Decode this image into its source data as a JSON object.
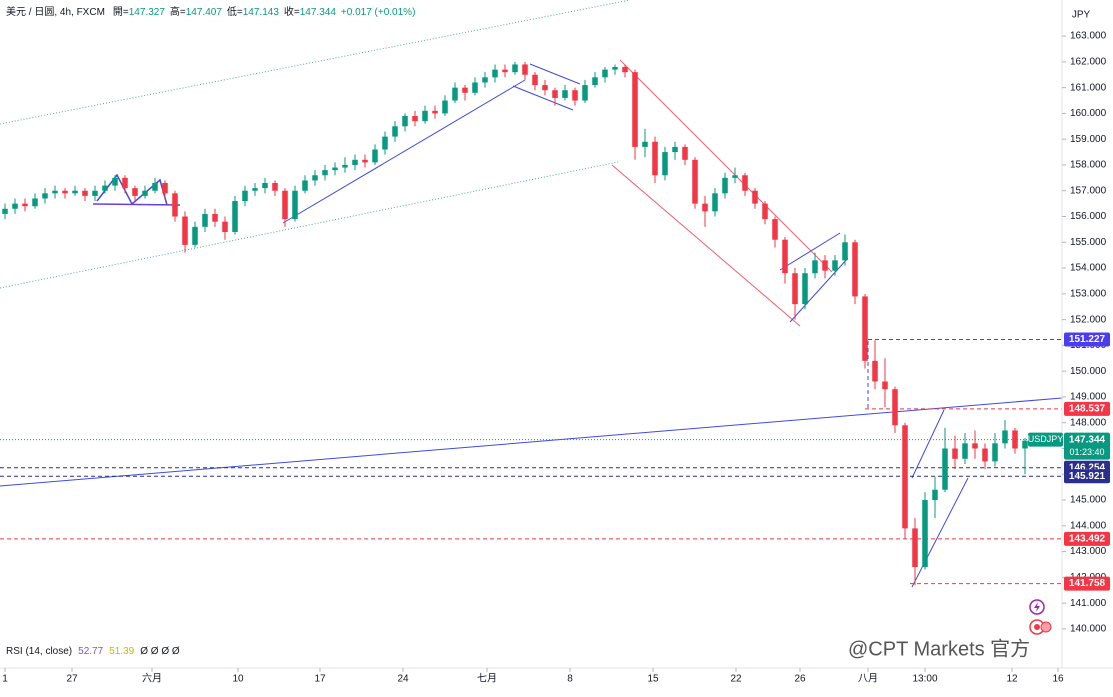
{
  "chart_data": {
    "type": "candlestick",
    "title": "美元 / 日圆, 4h, FXCM",
    "ohlc": [
      {
        "label": "開=",
        "value": 147.327
      },
      {
        "label": "高=",
        "value": 147.407
      },
      {
        "label": "低=",
        "value": 147.143
      },
      {
        "label": "收=",
        "value": 147.344
      }
    ],
    "change": "+0.017 (+0.01%)",
    "currency": "JPY",
    "up_color": "#089981",
    "down_color": "#f23645",
    "candles": [
      [
        156.1,
        156.5,
        155.9,
        156.3
      ],
      [
        156.3,
        156.7,
        156.1,
        156.5
      ],
      [
        156.5,
        156.7,
        156.2,
        156.4
      ],
      [
        156.4,
        156.9,
        156.3,
        156.7
      ],
      [
        156.7,
        157.1,
        156.5,
        156.9
      ],
      [
        156.9,
        157.2,
        156.7,
        157.0
      ],
      [
        157.0,
        157.1,
        156.7,
        156.9
      ],
      [
        156.9,
        157.2,
        156.8,
        157.0
      ],
      [
        157.0,
        157.1,
        156.6,
        156.8
      ],
      [
        156.8,
        157.2,
        156.6,
        157.0
      ],
      [
        157.0,
        157.4,
        156.9,
        157.2
      ],
      [
        157.2,
        157.6,
        157.0,
        157.5
      ],
      [
        157.5,
        157.6,
        156.9,
        157.1
      ],
      [
        157.1,
        157.2,
        156.6,
        156.8
      ],
      [
        156.8,
        157.2,
        156.7,
        157.0
      ],
      [
        157.0,
        157.5,
        156.9,
        157.3
      ],
      [
        157.3,
        157.4,
        156.7,
        156.9
      ],
      [
        156.9,
        157.0,
        155.8,
        156.0
      ],
      [
        156.0,
        156.2,
        154.6,
        154.9
      ],
      [
        154.9,
        155.8,
        154.8,
        155.6
      ],
      [
        155.6,
        156.3,
        155.4,
        156.1
      ],
      [
        156.1,
        156.3,
        155.6,
        155.8
      ],
      [
        155.8,
        156.0,
        155.1,
        155.4
      ],
      [
        155.4,
        156.8,
        155.3,
        156.6
      ],
      [
        156.6,
        157.2,
        156.4,
        157.0
      ],
      [
        157.0,
        157.3,
        156.8,
        157.1
      ],
      [
        157.1,
        157.5,
        156.9,
        157.3
      ],
      [
        157.3,
        157.4,
        156.8,
        157.0
      ],
      [
        157.0,
        157.1,
        155.6,
        155.9
      ],
      [
        155.9,
        157.2,
        155.8,
        157.0
      ],
      [
        157.0,
        157.6,
        156.9,
        157.4
      ],
      [
        157.4,
        157.8,
        157.2,
        157.6
      ],
      [
        157.6,
        158.0,
        157.4,
        157.8
      ],
      [
        157.8,
        158.1,
        157.6,
        157.9
      ],
      [
        157.9,
        158.3,
        157.7,
        158.0
      ],
      [
        158.0,
        158.4,
        157.8,
        158.2
      ],
      [
        158.2,
        158.4,
        157.9,
        158.1
      ],
      [
        158.1,
        158.8,
        158.0,
        158.6
      ],
      [
        158.6,
        159.3,
        158.4,
        159.1
      ],
      [
        159.1,
        159.7,
        158.9,
        159.5
      ],
      [
        159.5,
        160.0,
        159.3,
        159.9
      ],
      [
        159.9,
        160.1,
        159.5,
        159.7
      ],
      [
        159.7,
        160.3,
        159.6,
        160.1
      ],
      [
        160.1,
        160.3,
        159.8,
        160.0
      ],
      [
        160.0,
        160.7,
        159.9,
        160.5
      ],
      [
        160.5,
        161.2,
        160.4,
        161.0
      ],
      [
        161.0,
        161.1,
        160.5,
        160.8
      ],
      [
        160.8,
        161.4,
        160.7,
        161.2
      ],
      [
        161.2,
        161.6,
        161.0,
        161.4
      ],
      [
        161.4,
        161.9,
        161.2,
        161.7
      ],
      [
        161.7,
        161.9,
        161.4,
        161.6
      ],
      [
        161.6,
        162.0,
        161.5,
        161.9
      ],
      [
        161.9,
        162.0,
        161.3,
        161.5
      ],
      [
        161.5,
        161.6,
        160.9,
        161.1
      ],
      [
        161.1,
        161.3,
        160.7,
        160.9
      ],
      [
        160.9,
        161.0,
        160.3,
        160.6
      ],
      [
        160.6,
        161.1,
        160.5,
        160.9
      ],
      [
        160.9,
        161.0,
        160.3,
        160.5
      ],
      [
        160.5,
        161.3,
        160.4,
        161.1
      ],
      [
        161.1,
        161.6,
        161.0,
        161.4
      ],
      [
        161.4,
        161.8,
        161.2,
        161.7
      ],
      [
        161.7,
        161.9,
        161.5,
        161.8
      ],
      [
        161.8,
        161.9,
        161.4,
        161.6
      ],
      [
        161.6,
        161.7,
        158.2,
        158.7
      ],
      [
        158.7,
        159.4,
        158.3,
        158.9
      ],
      [
        158.9,
        159.1,
        157.3,
        157.6
      ],
      [
        157.6,
        158.7,
        157.4,
        158.5
      ],
      [
        158.5,
        158.9,
        158.2,
        158.7
      ],
      [
        158.7,
        158.8,
        158.0,
        158.2
      ],
      [
        158.2,
        158.3,
        156.3,
        156.5
      ],
      [
        156.5,
        156.8,
        155.6,
        156.2
      ],
      [
        156.2,
        157.1,
        156.0,
        156.9
      ],
      [
        156.9,
        157.7,
        156.7,
        157.5
      ],
      [
        157.5,
        157.9,
        157.3,
        157.6
      ],
      [
        157.6,
        157.7,
        156.8,
        157.0
      ],
      [
        157.0,
        157.1,
        156.3,
        156.5
      ],
      [
        156.5,
        156.6,
        155.7,
        155.9
      ],
      [
        155.9,
        156.0,
        154.8,
        155.1
      ],
      [
        155.1,
        155.2,
        153.4,
        153.8
      ],
      [
        153.8,
        154.0,
        152.0,
        152.6
      ],
      [
        152.6,
        154.0,
        152.4,
        153.8
      ],
      [
        153.8,
        154.6,
        153.6,
        154.3
      ],
      [
        154.3,
        154.5,
        153.6,
        153.9
      ],
      [
        153.9,
        154.5,
        153.7,
        154.3
      ],
      [
        154.3,
        155.3,
        154.1,
        155.0
      ],
      [
        155.0,
        155.1,
        152.6,
        152.9
      ],
      [
        152.9,
        153.0,
        150.1,
        150.4
      ],
      [
        150.4,
        151.2,
        149.3,
        149.6
      ],
      [
        149.6,
        150.5,
        148.6,
        149.3
      ],
      [
        149.3,
        149.4,
        147.6,
        147.9
      ],
      [
        147.9,
        148.0,
        143.5,
        143.9
      ],
      [
        143.9,
        144.3,
        141.7,
        142.4
      ],
      [
        142.4,
        145.3,
        142.3,
        145.0
      ],
      [
        145.0,
        145.9,
        144.3,
        145.4
      ],
      [
        145.4,
        147.8,
        145.3,
        147.0
      ],
      [
        147.0,
        147.5,
        146.2,
        146.6
      ],
      [
        146.6,
        147.6,
        146.4,
        147.2
      ],
      [
        147.2,
        147.7,
        146.6,
        147.0
      ],
      [
        147.0,
        147.2,
        146.2,
        146.5
      ],
      [
        146.5,
        147.6,
        146.3,
        147.2
      ],
      [
        147.2,
        148.1,
        147.0,
        147.7
      ],
      [
        147.7,
        147.8,
        146.8,
        147.0
      ],
      [
        147.0,
        147.4,
        146.0,
        147.3
      ],
      [
        147.327,
        147.407,
        147.143,
        147.344
      ]
    ],
    "xlim": [
      -0.5,
      105.7
    ],
    "xticks": [
      {
        "value": 0,
        "label": "1"
      },
      {
        "value": 6.7,
        "label": "27"
      },
      {
        "value": 14.7,
        "label": "六月"
      },
      {
        "value": 23.3,
        "label": "10"
      },
      {
        "value": 31.5,
        "label": "17"
      },
      {
        "value": 39.8,
        "label": "24"
      },
      {
        "value": 48.2,
        "label": "七月"
      },
      {
        "value": 56.5,
        "label": "8"
      },
      {
        "value": 64.8,
        "label": "15"
      },
      {
        "value": 73.1,
        "label": "22"
      },
      {
        "value": 79.5,
        "label": "26"
      },
      {
        "value": 86.3,
        "label": "八月"
      },
      {
        "value": 92,
        "label": "13:00"
      },
      {
        "value": 100.7,
        "label": "12"
      },
      {
        "value": 105.3,
        "label": "16"
      }
    ],
    "ylim": [
      138.6,
      164.4
    ],
    "yticks": [
      {
        "value": 140,
        "label": "140.000"
      },
      {
        "value": 141,
        "label": "141.000"
      },
      {
        "value": 142,
        "label": "142.000"
      },
      {
        "value": 143,
        "label": "143.000"
      },
      {
        "value": 144,
        "label": "144.000"
      },
      {
        "value": 145,
        "label": "145.000"
      },
      {
        "value": 146,
        "label": "146.000"
      },
      {
        "value": 147,
        "label": "147.000"
      },
      {
        "value": 148,
        "label": "148.000"
      },
      {
        "value": 149,
        "label": "149.000"
      },
      {
        "value": 150,
        "label": "150.000"
      },
      {
        "value": 151,
        "label": "151.000"
      },
      {
        "value": 152,
        "label": "152.000"
      },
      {
        "value": 153,
        "label": "153.000"
      },
      {
        "value": 154,
        "label": "154.000"
      },
      {
        "value": 155,
        "label": "155.000"
      },
      {
        "value": 156,
        "label": "156.000"
      },
      {
        "value": 157,
        "label": "157.000"
      },
      {
        "value": 158,
        "label": "158.000"
      },
      {
        "value": 159,
        "label": "159.000"
      },
      {
        "value": 160,
        "label": "160.000"
      },
      {
        "value": 161,
        "label": "161.000"
      },
      {
        "value": 162,
        "label": "162.000"
      },
      {
        "value": 163,
        "label": "163.000"
      }
    ],
    "levels": [
      {
        "value": 151.227,
        "color": "#4b3cf0",
        "from": 86.3
      },
      {
        "value": 148.537,
        "color": "#f23645",
        "from": 86
      },
      {
        "value": 146.254,
        "color": "#2a2e8c"
      },
      {
        "value": 145.921,
        "color": "#2a2e8c"
      },
      {
        "value": 143.492,
        "color": "#f23645"
      },
      {
        "value": 141.758,
        "color": "#f23645",
        "from": 90.5
      }
    ],
    "last": {
      "symbol": "USDJPY",
      "value": 147.344,
      "countdown": "01:23:40",
      "color": "#089981"
    },
    "indicator": {
      "label": "RSI (14, close)",
      "values": [
        52.77,
        51.39
      ],
      "flags": "Ø Ø Ø Ø"
    },
    "watermark": "@CPT Markets 官方"
  }
}
